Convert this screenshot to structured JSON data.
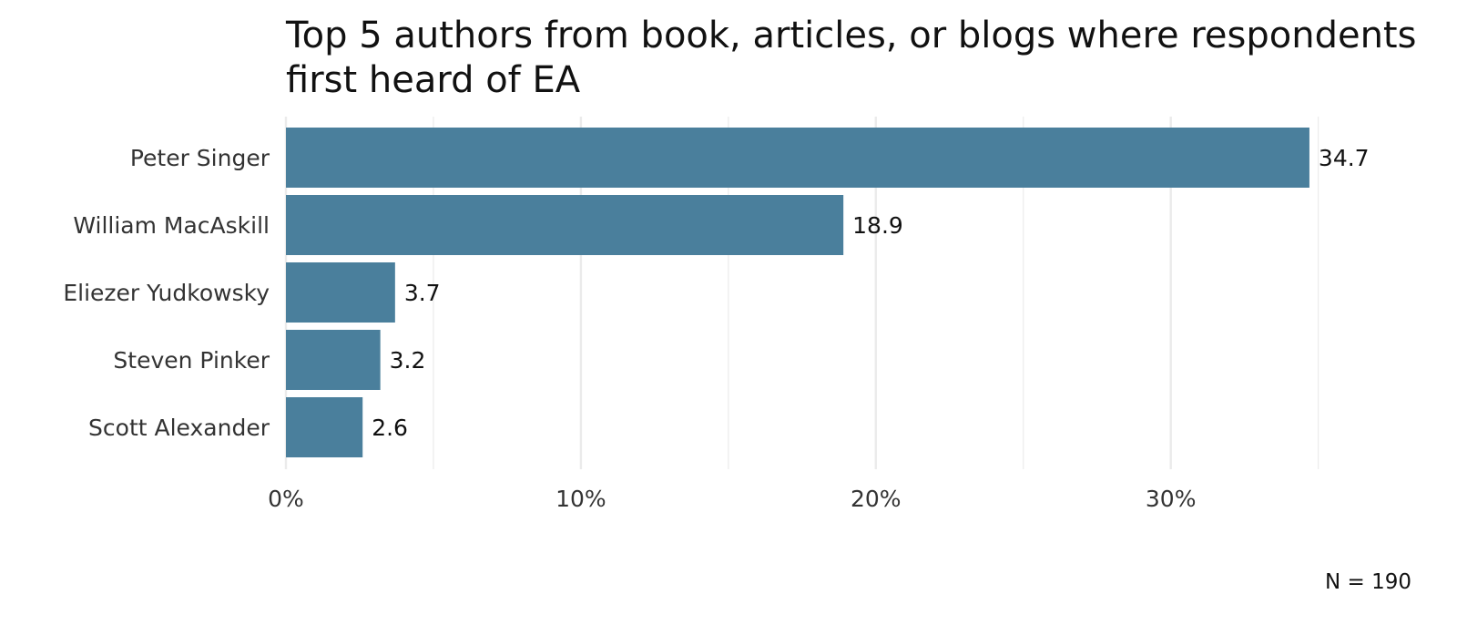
{
  "chart_data": {
    "type": "bar",
    "orientation": "horizontal",
    "title_lines": [
      "Top 5 authors from book, articles, or blogs where respondents",
      "first heard of EA"
    ],
    "categories": [
      "Peter Singer",
      "William MacAskill",
      "Eliezer Yudkowsky",
      "Steven Pinker",
      "Scott Alexander"
    ],
    "values": [
      34.7,
      18.9,
      3.7,
      3.2,
      2.6
    ],
    "value_labels": [
      "34.7",
      "18.9",
      "3.7",
      "3.2",
      "2.6"
    ],
    "x_ticks": [
      0,
      10,
      20,
      30
    ],
    "x_tick_labels": [
      "0%",
      "10%",
      "20%",
      "30%"
    ],
    "x_minor_gridlines": [
      5,
      15,
      25,
      35
    ],
    "xlim": [
      0,
      35
    ],
    "xlabel": "",
    "ylabel": "",
    "grid": true,
    "legend": "none",
    "caption": "N = 190",
    "bar_color": "#4a7f9c",
    "grid_color": "#ebebeb"
  }
}
